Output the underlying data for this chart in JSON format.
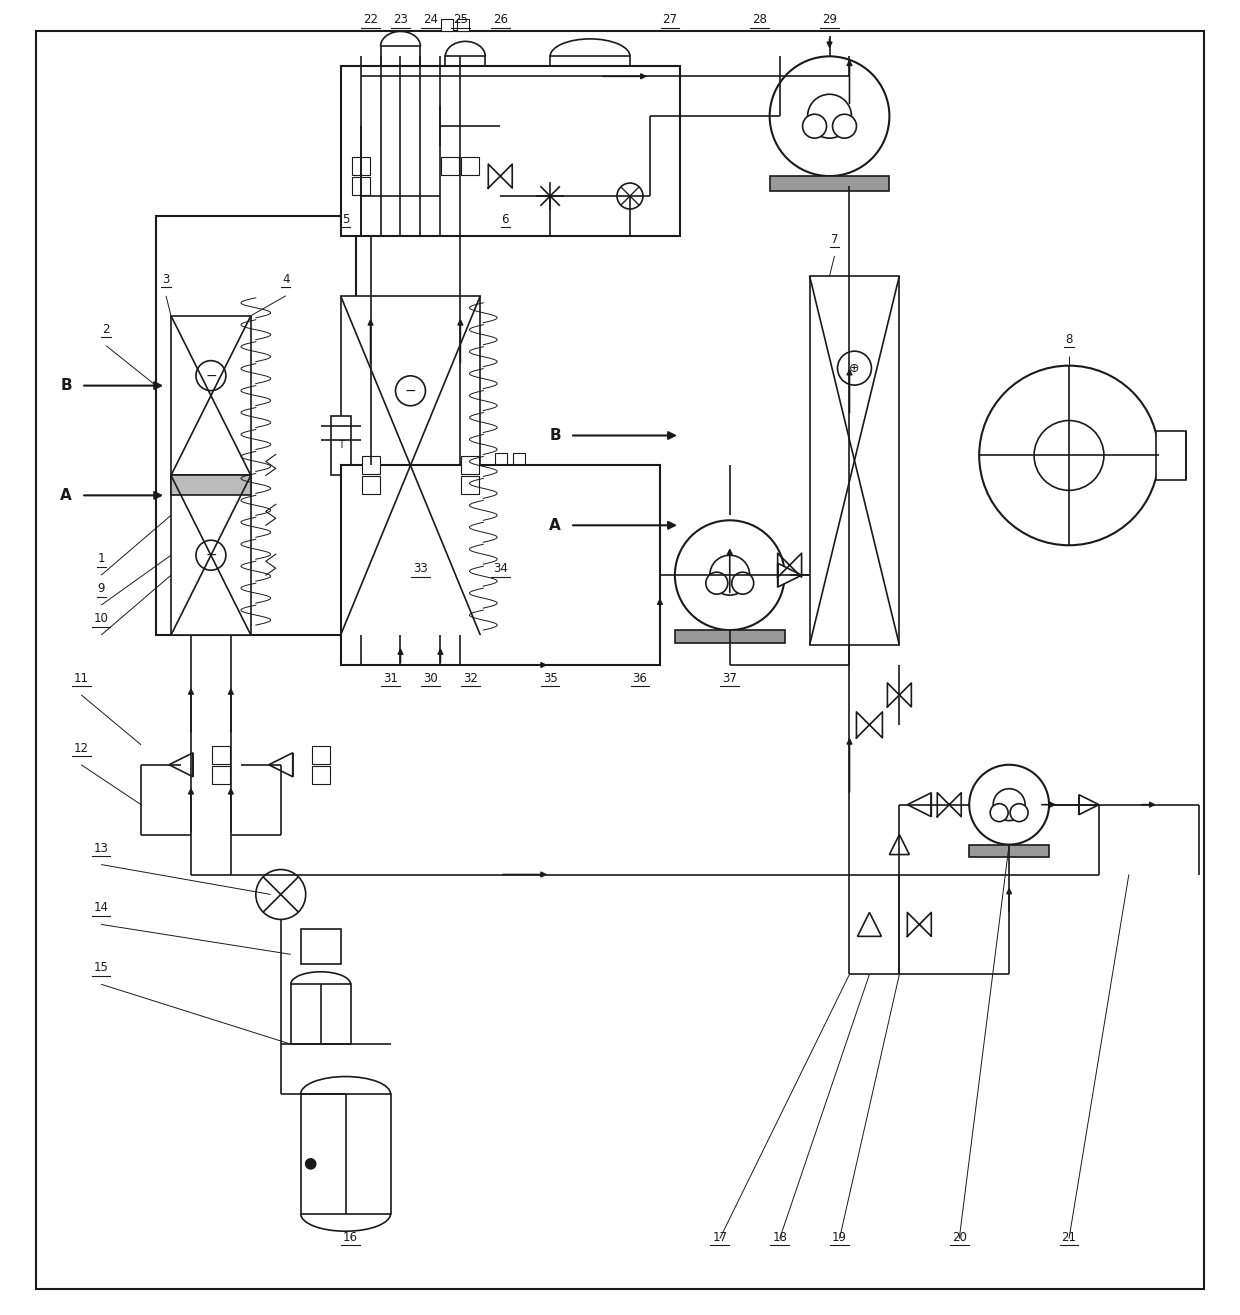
{
  "bg_color": "#ffffff",
  "line_color": "#1a1a1a",
  "figsize": [
    12.4,
    13.15
  ],
  "dpi": 100,
  "xlim": [
    0,
    124
  ],
  "ylim": [
    0,
    131.5
  ]
}
